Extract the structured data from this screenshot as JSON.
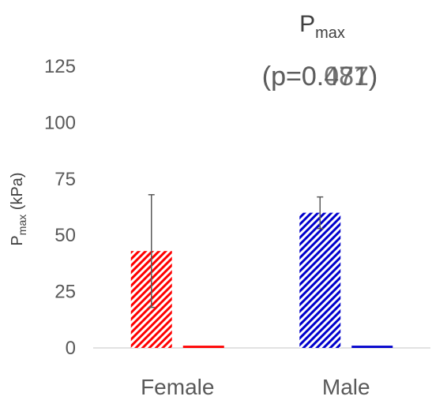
{
  "chart_data": {
    "type": "bar",
    "title": {
      "main": "P",
      "sub": "max"
    },
    "annotation_layers": [
      "(p=0.087)",
      "(p=0.471)"
    ],
    "ylabel": {
      "main": "P",
      "sub": "max",
      "rest": " (kPa)"
    },
    "ylim": [
      0,
      125
    ],
    "yticks": [
      0,
      25,
      50,
      75,
      100,
      125
    ],
    "categories": [
      "Female",
      "Male"
    ],
    "groups": [
      {
        "category": "Female",
        "color": "#ff0000",
        "bars": [
          {
            "value": 43,
            "error_low": 25,
            "error_high": 25,
            "pattern": "hatch"
          },
          {
            "value": 1,
            "pattern": "solid"
          }
        ]
      },
      {
        "category": "Male",
        "color": "#0000cc",
        "bars": [
          {
            "value": 60,
            "error_low": 7,
            "error_high": 7,
            "pattern": "hatch"
          },
          {
            "value": 1,
            "pattern": "solid"
          }
        ]
      }
    ],
    "grid": false,
    "legend": "none"
  }
}
